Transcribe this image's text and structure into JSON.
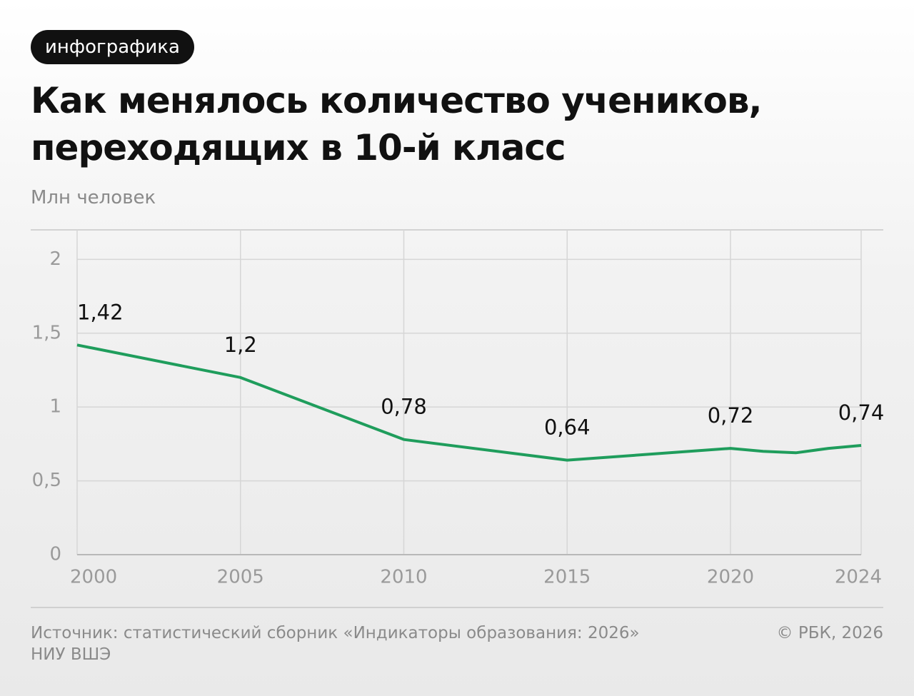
{
  "tag": "инфографика",
  "chart_data": {
    "type": "line",
    "title": "Как менялось количество учеников, переходящих в 10-й класс",
    "subtitle": "Млн человек",
    "x": [
      2000,
      2005,
      2010,
      2015,
      2020,
      2021,
      2022,
      2023,
      2024
    ],
    "values": [
      1.42,
      1.2,
      0.78,
      0.64,
      0.72,
      0.7,
      0.69,
      0.72,
      0.74
    ],
    "value_labels": [
      "1,42",
      "1,2",
      "0,78",
      "0,64",
      "0,72",
      null,
      null,
      null,
      "0,74"
    ],
    "color": "#1f9d5c",
    "xlim": [
      2000,
      2024
    ],
    "xticks": [
      2000,
      2005,
      2010,
      2015,
      2020,
      2024
    ],
    "ylim": [
      0,
      2.2
    ],
    "yticks": [
      0,
      {
        "value": 0.5,
        "label": "0,5"
      },
      1,
      {
        "value": 1.5,
        "label": "1,5"
      },
      2
    ],
    "grid": true
  },
  "footer": {
    "source": "Источник: статистический сборник «Индикаторы образования: 2026» НИУ ВШЭ",
    "credit": "© РБК, 2026"
  }
}
